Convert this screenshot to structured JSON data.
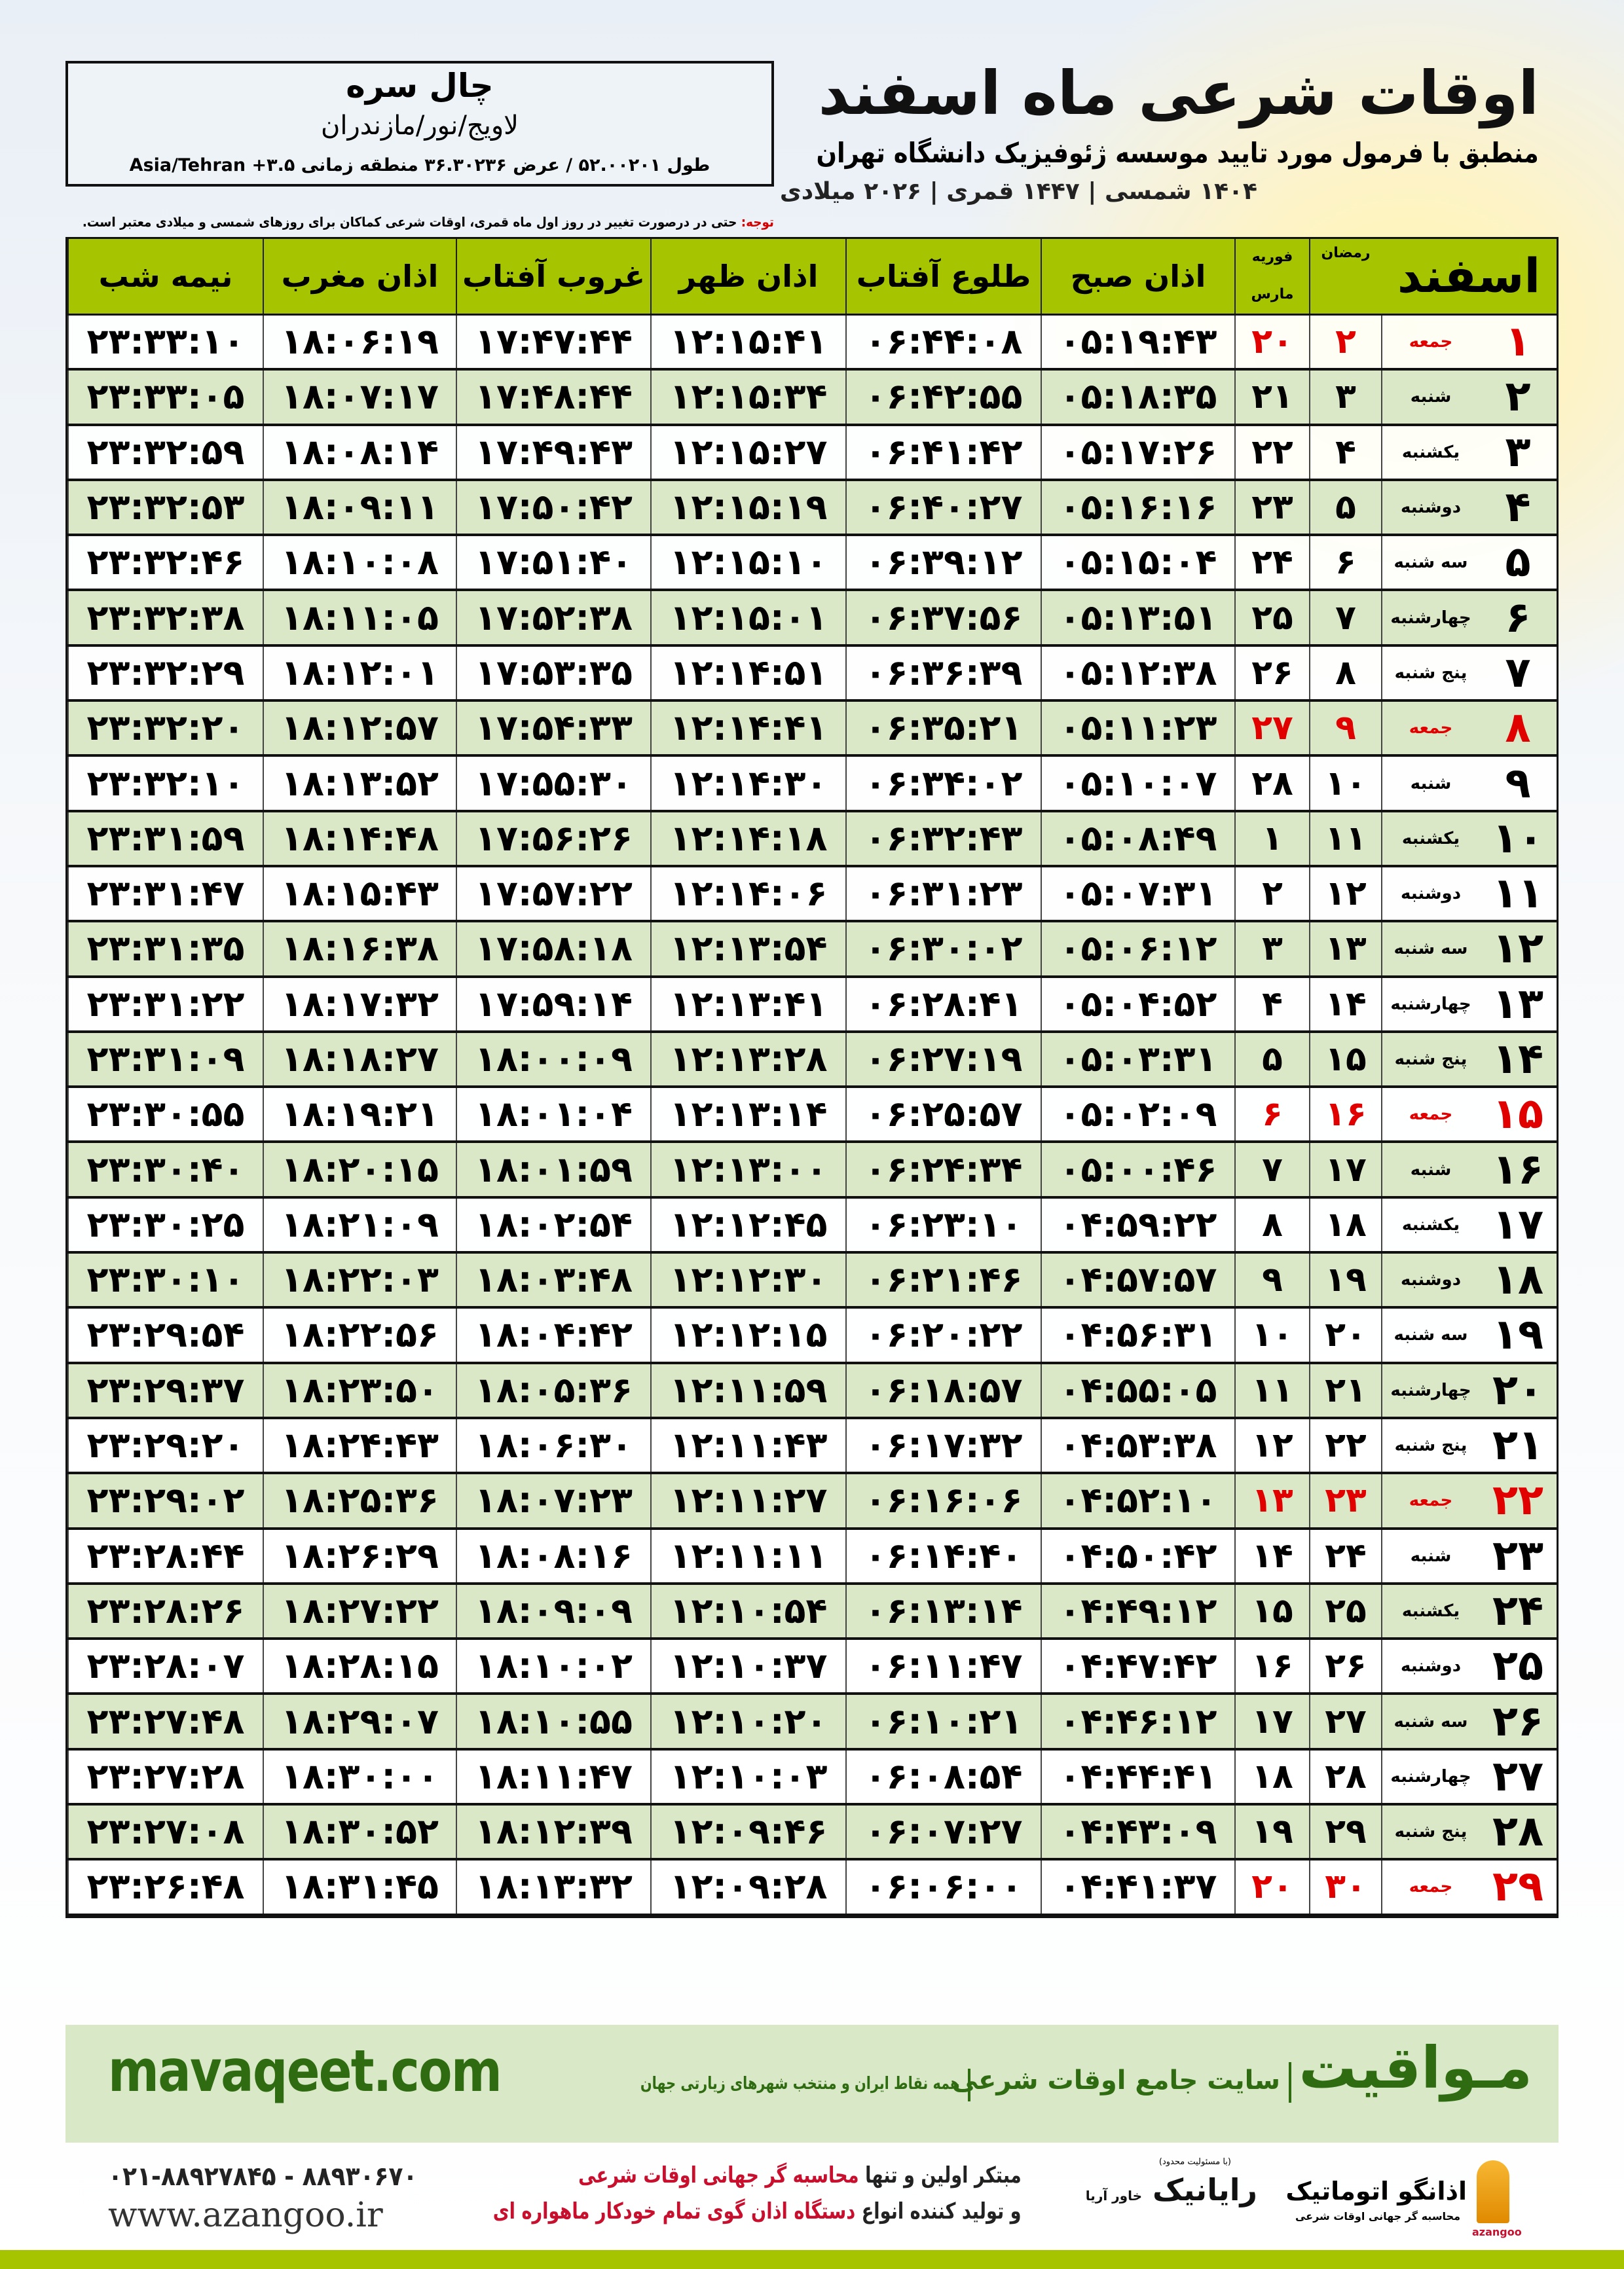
{
  "location": {
    "name": "چال سره",
    "region": "لاویج/نور/مازندران",
    "coords": "طول ۵۲.۰۰۲۰۱ / عرض ۳۶.۳۰۲۳۶ منطقه زمانی ۳.۵+ Asia/Tehran"
  },
  "header": {
    "title": "اوقات شرعی ماه اسفند",
    "subtitle": "منطبق با فرمول مورد تایید موسسه ژئوفیزیک دانشگاه تهران",
    "dateline": "۱۴۰۴ شمسی | ۱۴۴۷ قمری | ۲۰۲۶ میلادی"
  },
  "note": {
    "label": "توجه:",
    "text": " حتی در درصورت تغییر در روز اول ماه قمری، اوقات شرعی کماکان برای روزهای شمسی و میلادی معتبر است."
  },
  "colors": {
    "header_green": "#a6c400",
    "row_green": "#dbe8c7",
    "friday_red": "#e00000",
    "brand_green": "#2f6b10"
  },
  "table": {
    "headers": {
      "month": "اسفند",
      "ramadan": "رمضان",
      "feb": "فوریه",
      "mar": "مارس",
      "fajr": "اذان صبح",
      "sunrise": "طلوع آفتاب",
      "dhuhr": "اذان ظهر",
      "sunset": "غروب آفتاب",
      "maghrib": "اذان مغرب",
      "midnight": "نیمه شب"
    },
    "holiday_weekday": "جمعه",
    "rows": [
      [
        "۱",
        "جمعه",
        "۲",
        "۲۰",
        "۰۵:۱۹:۴۳",
        "۰۶:۴۴:۰۸",
        "۱۲:۱۵:۴۱",
        "۱۷:۴۷:۴۴",
        "۱۸:۰۶:۱۹",
        "۲۳:۳۳:۱۰"
      ],
      [
        "۲",
        "شنبه",
        "۳",
        "۲۱",
        "۰۵:۱۸:۳۵",
        "۰۶:۴۲:۵۵",
        "۱۲:۱۵:۳۴",
        "۱۷:۴۸:۴۴",
        "۱۸:۰۷:۱۷",
        "۲۳:۳۳:۰۵"
      ],
      [
        "۳",
        "یکشنبه",
        "۴",
        "۲۲",
        "۰۵:۱۷:۲۶",
        "۰۶:۴۱:۴۲",
        "۱۲:۱۵:۲۷",
        "۱۷:۴۹:۴۳",
        "۱۸:۰۸:۱۴",
        "۲۳:۳۲:۵۹"
      ],
      [
        "۴",
        "دوشنبه",
        "۵",
        "۲۳",
        "۰۵:۱۶:۱۶",
        "۰۶:۴۰:۲۷",
        "۱۲:۱۵:۱۹",
        "۱۷:۵۰:۴۲",
        "۱۸:۰۹:۱۱",
        "۲۳:۳۲:۵۳"
      ],
      [
        "۵",
        "سه شنبه",
        "۶",
        "۲۴",
        "۰۵:۱۵:۰۴",
        "۰۶:۳۹:۱۲",
        "۱۲:۱۵:۱۰",
        "۱۷:۵۱:۴۰",
        "۱۸:۱۰:۰۸",
        "۲۳:۳۲:۴۶"
      ],
      [
        "۶",
        "چهارشنبه",
        "۷",
        "۲۵",
        "۰۵:۱۳:۵۱",
        "۰۶:۳۷:۵۶",
        "۱۲:۱۵:۰۱",
        "۱۷:۵۲:۳۸",
        "۱۸:۱۱:۰۵",
        "۲۳:۳۲:۳۸"
      ],
      [
        "۷",
        "پنج شنبه",
        "۸",
        "۲۶",
        "۰۵:۱۲:۳۸",
        "۰۶:۳۶:۳۹",
        "۱۲:۱۴:۵۱",
        "۱۷:۵۳:۳۵",
        "۱۸:۱۲:۰۱",
        "۲۳:۳۲:۲۹"
      ],
      [
        "۸",
        "جمعه",
        "۹",
        "۲۷",
        "۰۵:۱۱:۲۳",
        "۰۶:۳۵:۲۱",
        "۱۲:۱۴:۴۱",
        "۱۷:۵۴:۳۳",
        "۱۸:۱۲:۵۷",
        "۲۳:۳۲:۲۰"
      ],
      [
        "۹",
        "شنبه",
        "۱۰",
        "۲۸",
        "۰۵:۱۰:۰۷",
        "۰۶:۳۴:۰۲",
        "۱۲:۱۴:۳۰",
        "۱۷:۵۵:۳۰",
        "۱۸:۱۳:۵۲",
        "۲۳:۳۲:۱۰"
      ],
      [
        "۱۰",
        "یکشنبه",
        "۱۱",
        "۱",
        "۰۵:۰۸:۴۹",
        "۰۶:۳۲:۴۳",
        "۱۲:۱۴:۱۸",
        "۱۷:۵۶:۲۶",
        "۱۸:۱۴:۴۸",
        "۲۳:۳۱:۵۹"
      ],
      [
        "۱۱",
        "دوشنبه",
        "۱۲",
        "۲",
        "۰۵:۰۷:۳۱",
        "۰۶:۳۱:۲۳",
        "۱۲:۱۴:۰۶",
        "۱۷:۵۷:۲۲",
        "۱۸:۱۵:۴۳",
        "۲۳:۳۱:۴۷"
      ],
      [
        "۱۲",
        "سه شنبه",
        "۱۳",
        "۳",
        "۰۵:۰۶:۱۲",
        "۰۶:۳۰:۰۲",
        "۱۲:۱۳:۵۴",
        "۱۷:۵۸:۱۸",
        "۱۸:۱۶:۳۸",
        "۲۳:۳۱:۳۵"
      ],
      [
        "۱۳",
        "چهارشنبه",
        "۱۴",
        "۴",
        "۰۵:۰۴:۵۲",
        "۰۶:۲۸:۴۱",
        "۱۲:۱۳:۴۱",
        "۱۷:۵۹:۱۴",
        "۱۸:۱۷:۳۲",
        "۲۳:۳۱:۲۲"
      ],
      [
        "۱۴",
        "پنج شنبه",
        "۱۵",
        "۵",
        "۰۵:۰۳:۳۱",
        "۰۶:۲۷:۱۹",
        "۱۲:۱۳:۲۸",
        "۱۸:۰۰:۰۹",
        "۱۸:۱۸:۲۷",
        "۲۳:۳۱:۰۹"
      ],
      [
        "۱۵",
        "جمعه",
        "۱۶",
        "۶",
        "۰۵:۰۲:۰۹",
        "۰۶:۲۵:۵۷",
        "۱۲:۱۳:۱۴",
        "۱۸:۰۱:۰۴",
        "۱۸:۱۹:۲۱",
        "۲۳:۳۰:۵۵"
      ],
      [
        "۱۶",
        "شنبه",
        "۱۷",
        "۷",
        "۰۵:۰۰:۴۶",
        "۰۶:۲۴:۳۴",
        "۱۲:۱۳:۰۰",
        "۱۸:۰۱:۵۹",
        "۱۸:۲۰:۱۵",
        "۲۳:۳۰:۴۰"
      ],
      [
        "۱۷",
        "یکشنبه",
        "۱۸",
        "۸",
        "۰۴:۵۹:۲۲",
        "۰۶:۲۳:۱۰",
        "۱۲:۱۲:۴۵",
        "۱۸:۰۲:۵۴",
        "۱۸:۲۱:۰۹",
        "۲۳:۳۰:۲۵"
      ],
      [
        "۱۸",
        "دوشنبه",
        "۱۹",
        "۹",
        "۰۴:۵۷:۵۷",
        "۰۶:۲۱:۴۶",
        "۱۲:۱۲:۳۰",
        "۱۸:۰۳:۴۸",
        "۱۸:۲۲:۰۳",
        "۲۳:۳۰:۱۰"
      ],
      [
        "۱۹",
        "سه شنبه",
        "۲۰",
        "۱۰",
        "۰۴:۵۶:۳۱",
        "۰۶:۲۰:۲۲",
        "۱۲:۱۲:۱۵",
        "۱۸:۰۴:۴۲",
        "۱۸:۲۲:۵۶",
        "۲۳:۲۹:۵۴"
      ],
      [
        "۲۰",
        "چهارشنبه",
        "۲۱",
        "۱۱",
        "۰۴:۵۵:۰۵",
        "۰۶:۱۸:۵۷",
        "۱۲:۱۱:۵۹",
        "۱۸:۰۵:۳۶",
        "۱۸:۲۳:۵۰",
        "۲۳:۲۹:۳۷"
      ],
      [
        "۲۱",
        "پنج شنبه",
        "۲۲",
        "۱۲",
        "۰۴:۵۳:۳۸",
        "۰۶:۱۷:۳۲",
        "۱۲:۱۱:۴۳",
        "۱۸:۰۶:۳۰",
        "۱۸:۲۴:۴۳",
        "۲۳:۲۹:۲۰"
      ],
      [
        "۲۲",
        "جمعه",
        "۲۳",
        "۱۳",
        "۰۴:۵۲:۱۰",
        "۰۶:۱۶:۰۶",
        "۱۲:۱۱:۲۷",
        "۱۸:۰۷:۲۳",
        "۱۸:۲۵:۳۶",
        "۲۳:۲۹:۰۲"
      ],
      [
        "۲۳",
        "شنبه",
        "۲۴",
        "۱۴",
        "۰۴:۵۰:۴۲",
        "۰۶:۱۴:۴۰",
        "۱۲:۱۱:۱۱",
        "۱۸:۰۸:۱۶",
        "۱۸:۲۶:۲۹",
        "۲۳:۲۸:۴۴"
      ],
      [
        "۲۴",
        "یکشنبه",
        "۲۵",
        "۱۵",
        "۰۴:۴۹:۱۲",
        "۰۶:۱۳:۱۴",
        "۱۲:۱۰:۵۴",
        "۱۸:۰۹:۰۹",
        "۱۸:۲۷:۲۲",
        "۲۳:۲۸:۲۶"
      ],
      [
        "۲۵",
        "دوشنبه",
        "۲۶",
        "۱۶",
        "۰۴:۴۷:۴۲",
        "۰۶:۱۱:۴۷",
        "۱۲:۱۰:۳۷",
        "۱۸:۱۰:۰۲",
        "۱۸:۲۸:۱۵",
        "۲۳:۲۸:۰۷"
      ],
      [
        "۲۶",
        "سه شنبه",
        "۲۷",
        "۱۷",
        "۰۴:۴۶:۱۲",
        "۰۶:۱۰:۲۱",
        "۱۲:۱۰:۲۰",
        "۱۸:۱۰:۵۵",
        "۱۸:۲۹:۰۷",
        "۲۳:۲۷:۴۸"
      ],
      [
        "۲۷",
        "چهارشنبه",
        "۲۸",
        "۱۸",
        "۰۴:۴۴:۴۱",
        "۰۶:۰۸:۵۴",
        "۱۲:۱۰:۰۳",
        "۱۸:۱۱:۴۷",
        "۱۸:۳۰:۰۰",
        "۲۳:۲۷:۲۸"
      ],
      [
        "۲۸",
        "پنج شنبه",
        "۲۹",
        "۱۹",
        "۰۴:۴۳:۰۹",
        "۰۶:۰۷:۲۷",
        "۱۲:۰۹:۴۶",
        "۱۸:۱۲:۳۹",
        "۱۸:۳۰:۵۲",
        "۲۳:۲۷:۰۸"
      ],
      [
        "۲۹",
        "جمعه",
        "۳۰",
        "۲۰",
        "۰۴:۴۱:۳۷",
        "۰۶:۰۶:۰۰",
        "۱۲:۰۹:۲۸",
        "۱۸:۱۳:۳۲",
        "۱۸:۳۱:۴۵",
        "۲۳:۲۶:۴۸"
      ]
    ]
  },
  "footer": {
    "brand": "مـواقیت",
    "brand_tagline": "سایت جامع اوقات شرعی",
    "brand_sub": "همه نقاط ایران و منتخب شهرهای زیارتی جهان",
    "site_url": "mavaqeet.com",
    "phone": "۰۲۱-۸۸۹۲۷۸۴۵ - ۸۸۹۳۰۶۷۰",
    "website": "www.azangoo.ir",
    "promo1_a": "مبتکر اولین و تنها ",
    "promo1_b": "محاسبه گر جهانی اوقات شرعی",
    "promo2_a": "و تولید کننده انواع ",
    "promo2_b": "دستگاه اذان گوی تمام خودکار ماهواره ای",
    "rayanik": "رایانیک",
    "rayanik_note": "(با مسئولیت محدود)",
    "khavar": "خاور آریا",
    "azangoo": "اذانگو اتوماتیک",
    "azangoo_sub": "محاسبه گر جهانی اوقات شرعی",
    "azangoo_latin": "azangoo"
  }
}
